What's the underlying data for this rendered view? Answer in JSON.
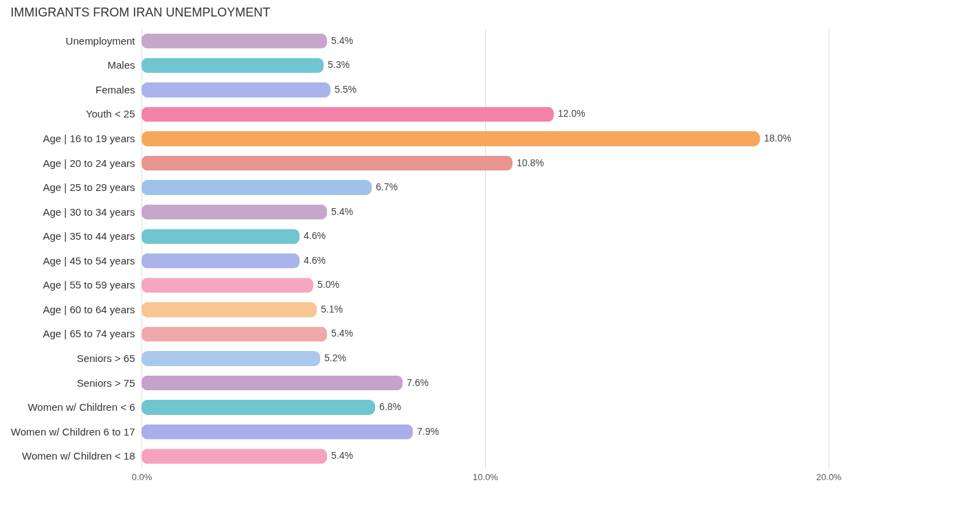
{
  "chart_data": {
    "type": "bar",
    "orientation": "horizontal",
    "title": "IMMIGRANTS FROM IRAN UNEMPLOYMENT",
    "categories": [
      "Unemployment",
      "Males",
      "Females",
      "Youth < 25",
      "Age | 16 to 19 years",
      "Age | 20 to 24 years",
      "Age | 25 to 29 years",
      "Age | 30 to 34 years",
      "Age | 35 to 44 years",
      "Age | 45 to 54 years",
      "Age | 55 to 59 years",
      "Age | 60 to 64 years",
      "Age | 65 to 74 years",
      "Seniors > 65",
      "Seniors > 75",
      "Women w/ Children < 6",
      "Women w/ Children 6 to 17",
      "Women w/ Children < 18"
    ],
    "values": [
      5.4,
      5.3,
      5.5,
      12.0,
      18.0,
      10.8,
      6.7,
      5.4,
      4.6,
      4.6,
      5.0,
      5.1,
      5.4,
      5.2,
      7.6,
      6.8,
      7.9,
      5.4
    ],
    "value_labels": [
      "5.4%",
      "5.3%",
      "5.5%",
      "12.0%",
      "18.0%",
      "10.8%",
      "6.7%",
      "5.4%",
      "4.6%",
      "4.6%",
      "5.0%",
      "5.1%",
      "5.4%",
      "5.2%",
      "7.6%",
      "6.8%",
      "7.9%",
      "5.4%"
    ],
    "colors": [
      "#c6a6cb",
      "#6fc6d0",
      "#aab4ea",
      "#f282a8",
      "#f7a75a",
      "#e8958f",
      "#9fc2ea",
      "#c6a6cb",
      "#6fc6d0",
      "#aab4ea",
      "#f5a7c1",
      "#f9c593",
      "#f0a9a8",
      "#a9c8ec",
      "#c4a2c9",
      "#6fc6d0",
      "#a8aeea",
      "#f5a2bf"
    ],
    "xlim": [
      0,
      20
    ],
    "xticks": [
      {
        "value": 0,
        "label": "0.0%"
      },
      {
        "value": 10,
        "label": "10.0%"
      },
      {
        "value": 20,
        "label": "20.0%"
      }
    ],
    "grid": "x"
  }
}
